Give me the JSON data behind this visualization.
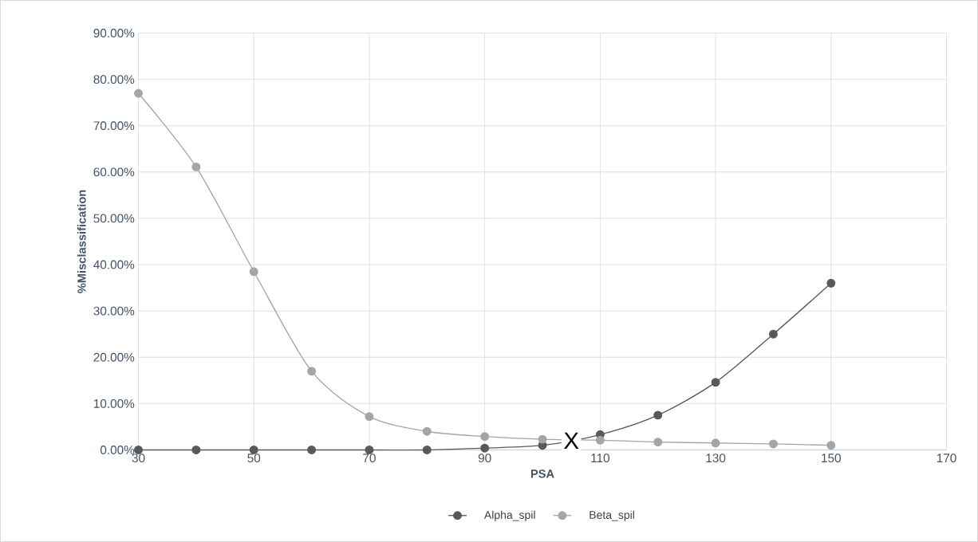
{
  "chart_data": {
    "type": "line",
    "xlabel": "PSA",
    "ylabel": "%Misclassification",
    "x": [
      30,
      40,
      50,
      60,
      70,
      80,
      90,
      100,
      110,
      120,
      130,
      140,
      150
    ],
    "series": [
      {
        "name": "Alpha_spil",
        "color": "#595959",
        "values": [
          0,
          0,
          0,
          0,
          0,
          0,
          0.4,
          1.0,
          3.3,
          7.5,
          14.6,
          25.0,
          36.0
        ]
      },
      {
        "name": "Beta_spil",
        "color": "#a5a5a5",
        "values": [
          77,
          61.1,
          38.5,
          17.0,
          7.2,
          4.0,
          2.9,
          2.3,
          2.1,
          1.7,
          1.5,
          1.3,
          1.0
        ]
      }
    ],
    "xlim": [
      30,
      170
    ],
    "xticks": [
      30,
      50,
      70,
      90,
      110,
      130,
      150,
      170
    ],
    "ylim": [
      0,
      90
    ],
    "yticks": [
      {
        "value": 0,
        "label": "0.00%"
      },
      {
        "value": 10,
        "label": "10.00%"
      },
      {
        "value": 20,
        "label": "20.00%"
      },
      {
        "value": 30,
        "label": "30.00%"
      },
      {
        "value": 40,
        "label": "40.00%"
      },
      {
        "value": 50,
        "label": "50.00%"
      },
      {
        "value": 60,
        "label": "60.00%"
      },
      {
        "value": 70,
        "label": "70.00%"
      },
      {
        "value": 80,
        "label": "80.00%"
      },
      {
        "value": 90,
        "label": "90.00%"
      }
    ],
    "annotations": [
      {
        "text": "X",
        "x": 105,
        "y": 2
      }
    ],
    "grid": true,
    "legend": "bottom",
    "marker": "circle",
    "line_style": "solid"
  }
}
